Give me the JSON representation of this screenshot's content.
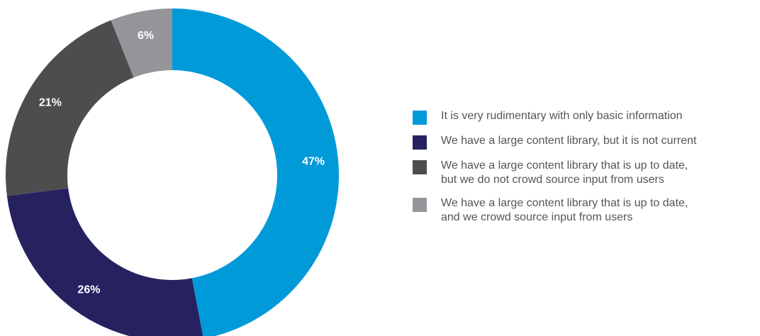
{
  "chart_data": {
    "type": "pie",
    "donut": true,
    "legend_position": "right",
    "slices": [
      {
        "label": "It is very rudimentary with only basic information",
        "value": 47,
        "display": "47%",
        "color": "#009ad9"
      },
      {
        "label": "We have a large content library, but it is not current",
        "value": 26,
        "display": "26%",
        "color": "#262260"
      },
      {
        "label": "We have a large content library that is up to date,\nbut we do not crowd source input from users",
        "value": 21,
        "display": "21%",
        "color": "#4d4d4f"
      },
      {
        "label": "We have a large content library that is up to date,\nand we crowd source input from users",
        "value": 6,
        "display": "6%",
        "color": "#939598"
      }
    ]
  }
}
